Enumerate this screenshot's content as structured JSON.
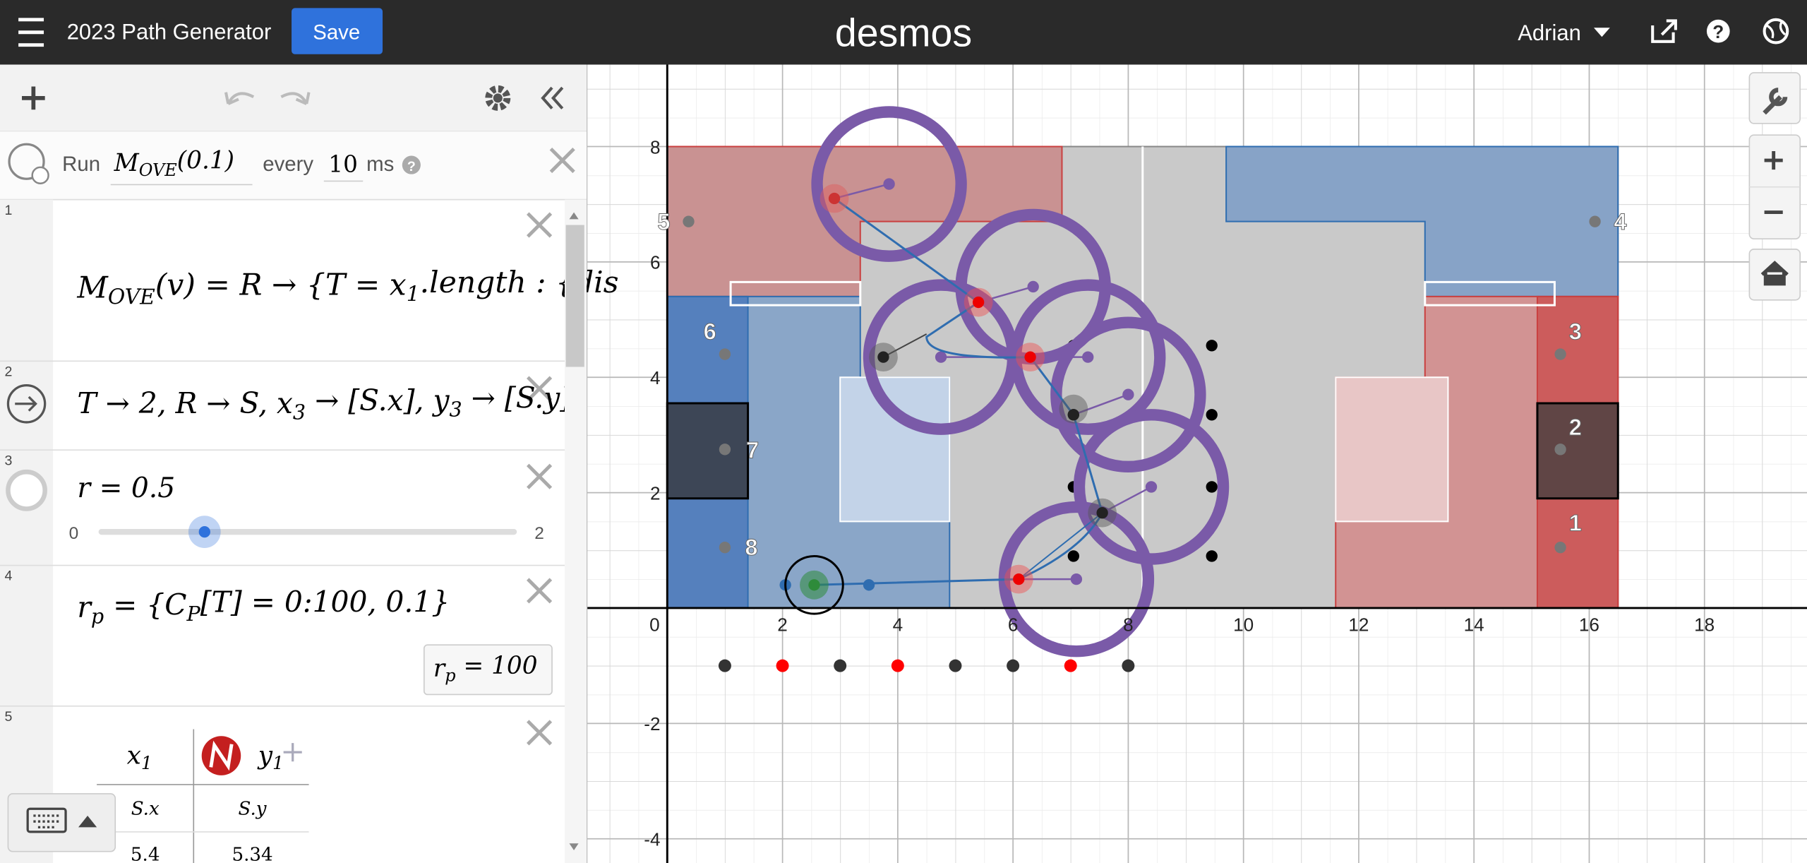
{
  "header": {
    "title": "2023 Path Generator",
    "save": "Save",
    "logo": "desmos",
    "user": "Adrian"
  },
  "ticker": {
    "run": "Run",
    "expression": [
      "M",
      "OVE",
      "(0.1)"
    ],
    "every": "every",
    "interval": "10",
    "unit": "ms"
  },
  "expressions": [
    {
      "index": "1",
      "segments": [
        "M",
        "OVE",
        "(v) = R → {T = x",
        "1",
        ".length : {dis"
      ]
    },
    {
      "index": "2",
      "segments": [
        "T → 2, R → S, x",
        "3",
        " → [S.x], y",
        "3",
        " → [S.y]"
      ]
    },
    {
      "index": "3",
      "segments": [
        "r = 0.5"
      ],
      "slider": {
        "min": 0,
        "max": 2,
        "value": 0.5
      }
    },
    {
      "index": "4",
      "segments": [
        "r",
        "p",
        " = {C",
        "P",
        "[T] = 0:100, 0.1}"
      ],
      "result": [
        "r",
        "p",
        " = 100"
      ]
    },
    {
      "index": "5",
      "table": {
        "headers": [
          [
            "x",
            "1"
          ],
          [
            "y",
            "1"
          ]
        ],
        "rows": [
          [
            "S.x",
            "S.y"
          ],
          [
            "5.4",
            "5.34"
          ]
        ]
      }
    }
  ],
  "graph": {
    "xlim": [
      -1.4,
      19.78
    ],
    "ylim": [
      -4.42,
      9.42
    ],
    "xticks": [
      0,
      2,
      4,
      6,
      8,
      10,
      12,
      14,
      16,
      18
    ],
    "yticks": [
      -4,
      -2,
      2,
      4,
      6,
      8
    ],
    "point_labels": [
      "1",
      "2",
      "3",
      "4",
      "5",
      "6",
      "7",
      "8"
    ]
  }
}
